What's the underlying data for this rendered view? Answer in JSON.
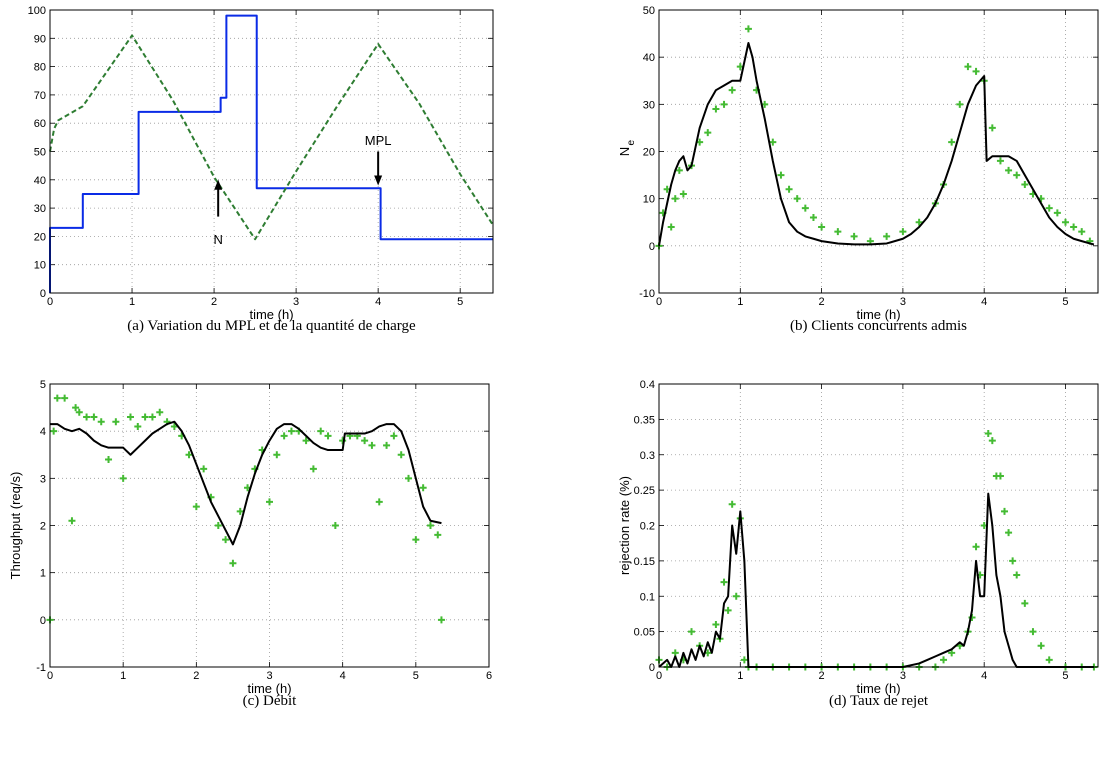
{
  "chart_data": [
    {
      "type": "line",
      "caption": "(a)  Variation du MPL et de la quantité de charge",
      "xlabel": "time (h)",
      "xlim": [
        0,
        5.4
      ],
      "xticks": [
        0,
        1,
        2,
        3,
        4,
        5
      ],
      "ylim": [
        0,
        100
      ],
      "yticks": [
        0,
        10,
        20,
        30,
        40,
        50,
        60,
        70,
        80,
        90,
        100
      ],
      "grid": true,
      "annotations": [
        "N",
        "MPL"
      ],
      "series": [
        {
          "type": "line",
          "color": "#0a2be6",
          "dash": false,
          "x": [
            0,
            0,
            0.4,
            0.4,
            1.08,
            1.08,
            2.08,
            2.08,
            2.15,
            2.15,
            2.52,
            2.52,
            4.03,
            4.03,
            5.4
          ],
          "values": [
            0,
            23,
            23,
            35,
            35,
            64,
            64,
            69,
            69,
            98,
            98,
            37,
            37,
            19,
            19
          ]
        },
        {
          "type": "line",
          "color": "#2e7d32",
          "dash": true,
          "x": [
            0,
            0.05,
            0.1,
            0.4,
            1.0,
            1.5,
            2.0,
            2.5,
            3.0,
            3.5,
            4.0,
            4.5,
            5.0,
            5.4
          ],
          "values": [
            50,
            58,
            61,
            66,
            91,
            68,
            41,
            19,
            43,
            66,
            88,
            67,
            42,
            24
          ]
        }
      ]
    },
    {
      "type": "line",
      "caption": "(b)  Clients concurrents admis",
      "xlabel": "time (h)",
      "ylabel": "N",
      "ylabel_sub": "e",
      "xlim": [
        0,
        5.4
      ],
      "xticks": [
        0,
        1,
        2,
        3,
        4,
        5
      ],
      "ylim": [
        -10,
        50
      ],
      "yticks": [
        -10,
        0,
        10,
        20,
        30,
        40,
        50
      ],
      "grid": true,
      "series": [
        {
          "type": "scatter",
          "color": "#44bb33",
          "x": [
            0,
            0.05,
            0.1,
            0.15,
            0.2,
            0.25,
            0.3,
            0.4,
            0.5,
            0.6,
            0.7,
            0.8,
            0.9,
            1.0,
            1.1,
            1.2,
            1.3,
            1.4,
            1.5,
            1.6,
            1.7,
            1.8,
            1.9,
            2.0,
            2.2,
            2.4,
            2.6,
            2.8,
            3.0,
            3.2,
            3.4,
            3.5,
            3.6,
            3.7,
            3.8,
            3.9,
            4.0,
            4.1,
            4.2,
            4.3,
            4.4,
            4.5,
            4.6,
            4.7,
            4.8,
            4.9,
            5.0,
            5.1,
            5.2,
            5.3
          ],
          "values": [
            0,
            7,
            12,
            4,
            10,
            16,
            11,
            17,
            22,
            24,
            29,
            30,
            33,
            38,
            46,
            33,
            30,
            22,
            15,
            12,
            10,
            8,
            6,
            4,
            3,
            2,
            1,
            2,
            3,
            5,
            9,
            13,
            22,
            30,
            38,
            37,
            35,
            25,
            18,
            16,
            15,
            13,
            11,
            10,
            8,
            7,
            5,
            4,
            3,
            1
          ]
        },
        {
          "type": "line",
          "color": "#000000",
          "dash": false,
          "x": [
            0,
            0.05,
            0.1,
            0.15,
            0.2,
            0.25,
            0.3,
            0.35,
            0.4,
            0.45,
            0.5,
            0.6,
            0.7,
            0.8,
            0.9,
            1.0,
            1.05,
            1.1,
            1.15,
            1.2,
            1.3,
            1.4,
            1.5,
            1.6,
            1.7,
            1.8,
            1.9,
            2.0,
            2.2,
            2.4,
            2.6,
            2.8,
            3.0,
            3.1,
            3.2,
            3.3,
            3.4,
            3.5,
            3.6,
            3.7,
            3.8,
            3.9,
            4.0,
            4.03,
            4.1,
            4.2,
            4.3,
            4.4,
            4.5,
            4.6,
            4.7,
            4.8,
            4.9,
            5.0,
            5.1,
            5.2,
            5.3,
            5.35
          ],
          "values": [
            0,
            5,
            9,
            13,
            16,
            18,
            19,
            16,
            17,
            21,
            25,
            30,
            33,
            34,
            35,
            35,
            39,
            43,
            40,
            35,
            27,
            18,
            10,
            5,
            3,
            2,
            1.5,
            1,
            0.5,
            0.3,
            0.3,
            0.5,
            1.5,
            2.5,
            4,
            6,
            9,
            13,
            18,
            24,
            30,
            34,
            36,
            18,
            19,
            19,
            19,
            18,
            15,
            12,
            9,
            6,
            4,
            2.5,
            1.5,
            1,
            0.5,
            0.3
          ]
        }
      ]
    },
    {
      "type": "line",
      "caption": "(c)  Débit",
      "xlabel": "time (h)",
      "ylabel": "Throughput (req/s)",
      "xlim": [
        0,
        6
      ],
      "xticks": [
        0,
        1,
        2,
        3,
        4,
        5,
        6
      ],
      "ylim": [
        -1,
        5
      ],
      "yticks": [
        -1,
        0,
        1,
        2,
        3,
        4,
        5
      ],
      "grid": true,
      "series": [
        {
          "type": "scatter",
          "color": "#44bb33",
          "x": [
            0,
            0.05,
            0.1,
            0.2,
            0.3,
            0.35,
            0.4,
            0.5,
            0.6,
            0.7,
            0.8,
            0.9,
            1.0,
            1.1,
            1.2,
            1.3,
            1.4,
            1.5,
            1.6,
            1.7,
            1.8,
            1.9,
            2.0,
            2.1,
            2.2,
            2.3,
            2.4,
            2.5,
            2.6,
            2.7,
            2.8,
            2.9,
            3.0,
            3.1,
            3.2,
            3.3,
            3.4,
            3.5,
            3.6,
            3.7,
            3.8,
            3.9,
            4.0,
            4.1,
            4.2,
            4.3,
            4.4,
            4.5,
            4.6,
            4.7,
            4.8,
            4.9,
            5.0,
            5.1,
            5.2,
            5.3,
            5.35
          ],
          "values": [
            0,
            4.0,
            4.7,
            4.7,
            2.1,
            4.5,
            4.4,
            4.3,
            4.3,
            4.2,
            3.4,
            4.2,
            3.0,
            4.3,
            4.1,
            4.3,
            4.3,
            4.4,
            4.2,
            4.1,
            3.9,
            3.5,
            2.4,
            3.2,
            2.6,
            2.0,
            1.7,
            1.2,
            2.3,
            2.8,
            3.2,
            3.6,
            2.5,
            3.5,
            3.9,
            4.0,
            4.0,
            3.8,
            3.2,
            4.0,
            3.9,
            2.0,
            3.8,
            3.9,
            3.9,
            3.8,
            3.7,
            2.5,
            3.7,
            3.9,
            3.5,
            3.0,
            1.7,
            2.8,
            2.0,
            1.8,
            0
          ]
        },
        {
          "type": "line",
          "color": "#000000",
          "dash": false,
          "x": [
            0,
            0.1,
            0.2,
            0.3,
            0.4,
            0.5,
            0.6,
            0.7,
            0.8,
            0.9,
            1.0,
            1.1,
            1.2,
            1.3,
            1.4,
            1.5,
            1.6,
            1.7,
            1.8,
            1.9,
            2.0,
            2.1,
            2.2,
            2.3,
            2.4,
            2.5,
            2.6,
            2.7,
            2.8,
            2.9,
            3.0,
            3.1,
            3.2,
            3.3,
            3.4,
            3.5,
            3.6,
            3.7,
            3.8,
            3.9,
            4.0,
            4.03,
            4.1,
            4.2,
            4.3,
            4.4,
            4.5,
            4.6,
            4.7,
            4.8,
            4.9,
            5.0,
            5.1,
            5.2,
            5.35
          ],
          "values": [
            4.15,
            4.15,
            4.05,
            4.0,
            4.05,
            3.95,
            3.8,
            3.7,
            3.65,
            3.65,
            3.65,
            3.5,
            3.65,
            3.8,
            3.95,
            4.05,
            4.15,
            4.2,
            4.0,
            3.7,
            3.3,
            2.9,
            2.5,
            2.2,
            1.9,
            1.6,
            2.0,
            2.6,
            3.1,
            3.5,
            3.8,
            4.05,
            4.15,
            4.15,
            4.05,
            3.9,
            3.75,
            3.65,
            3.6,
            3.6,
            3.6,
            3.95,
            3.95,
            3.95,
            3.95,
            4.0,
            4.1,
            4.15,
            4.15,
            4.0,
            3.6,
            3.0,
            2.4,
            2.1,
            2.05
          ]
        }
      ]
    },
    {
      "type": "line",
      "caption": "(d)  Taux de rejet",
      "xlabel": "time (h)",
      "ylabel": "rejection rate (%)",
      "xlim": [
        0,
        5.4
      ],
      "xticks": [
        0,
        1,
        2,
        3,
        4,
        5
      ],
      "ylim": [
        0,
        0.4
      ],
      "yticks": [
        0,
        0.05,
        0.1,
        0.15,
        0.2,
        0.25,
        0.3,
        0.35,
        0.4
      ],
      "grid": true,
      "series": [
        {
          "type": "scatter",
          "color": "#44bb33",
          "x": [
            0,
            0.1,
            0.2,
            0.3,
            0.4,
            0.5,
            0.6,
            0.7,
            0.75,
            0.8,
            0.85,
            0.9,
            0.95,
            1.0,
            1.05,
            1.1,
            1.2,
            1.4,
            1.6,
            1.8,
            2.0,
            2.2,
            2.4,
            2.6,
            2.8,
            3.0,
            3.2,
            3.4,
            3.5,
            3.6,
            3.7,
            3.8,
            3.85,
            3.9,
            3.95,
            4.0,
            4.05,
            4.1,
            4.15,
            4.2,
            4.25,
            4.3,
            4.35,
            4.4,
            4.5,
            4.6,
            4.7,
            4.8,
            5.0,
            5.2,
            5.35
          ],
          "values": [
            0.01,
            0,
            0.02,
            0.01,
            0.05,
            0.03,
            0.02,
            0.06,
            0.04,
            0.12,
            0.08,
            0.23,
            0.1,
            0.21,
            0.01,
            0,
            0,
            0,
            0,
            0,
            0,
            0,
            0,
            0,
            0,
            0,
            0,
            0,
            0.01,
            0.02,
            0.03,
            0.05,
            0.07,
            0.17,
            0.13,
            0.2,
            0.33,
            0.32,
            0.27,
            0.27,
            0.22,
            0.19,
            0.15,
            0.13,
            0.09,
            0.05,
            0.03,
            0.01,
            0,
            0,
            0
          ]
        },
        {
          "type": "line",
          "color": "#000000",
          "dash": false,
          "x": [
            0,
            0.1,
            0.15,
            0.2,
            0.25,
            0.3,
            0.35,
            0.4,
            0.45,
            0.5,
            0.55,
            0.6,
            0.65,
            0.7,
            0.75,
            0.8,
            0.85,
            0.9,
            0.95,
            1.0,
            1.05,
            1.1,
            1.5,
            2.0,
            2.5,
            3.0,
            3.2,
            3.3,
            3.4,
            3.5,
            3.6,
            3.7,
            3.75,
            3.8,
            3.85,
            3.9,
            3.95,
            4.0,
            4.05,
            4.1,
            4.15,
            4.2,
            4.25,
            4.3,
            4.35,
            4.4,
            4.45,
            4.5,
            5.0,
            5.35
          ],
          "values": [
            0,
            0.01,
            0,
            0.015,
            0,
            0.02,
            0.005,
            0.025,
            0.01,
            0.03,
            0.015,
            0.035,
            0.02,
            0.05,
            0.04,
            0.09,
            0.1,
            0.2,
            0.16,
            0.22,
            0.15,
            0,
            0,
            0,
            0,
            0,
            0.005,
            0.01,
            0.015,
            0.02,
            0.025,
            0.035,
            0.03,
            0.05,
            0.08,
            0.15,
            0.1,
            0.1,
            0.245,
            0.2,
            0.13,
            0.1,
            0.05,
            0.03,
            0.01,
            0,
            0,
            0,
            0,
            0
          ]
        }
      ]
    }
  ]
}
